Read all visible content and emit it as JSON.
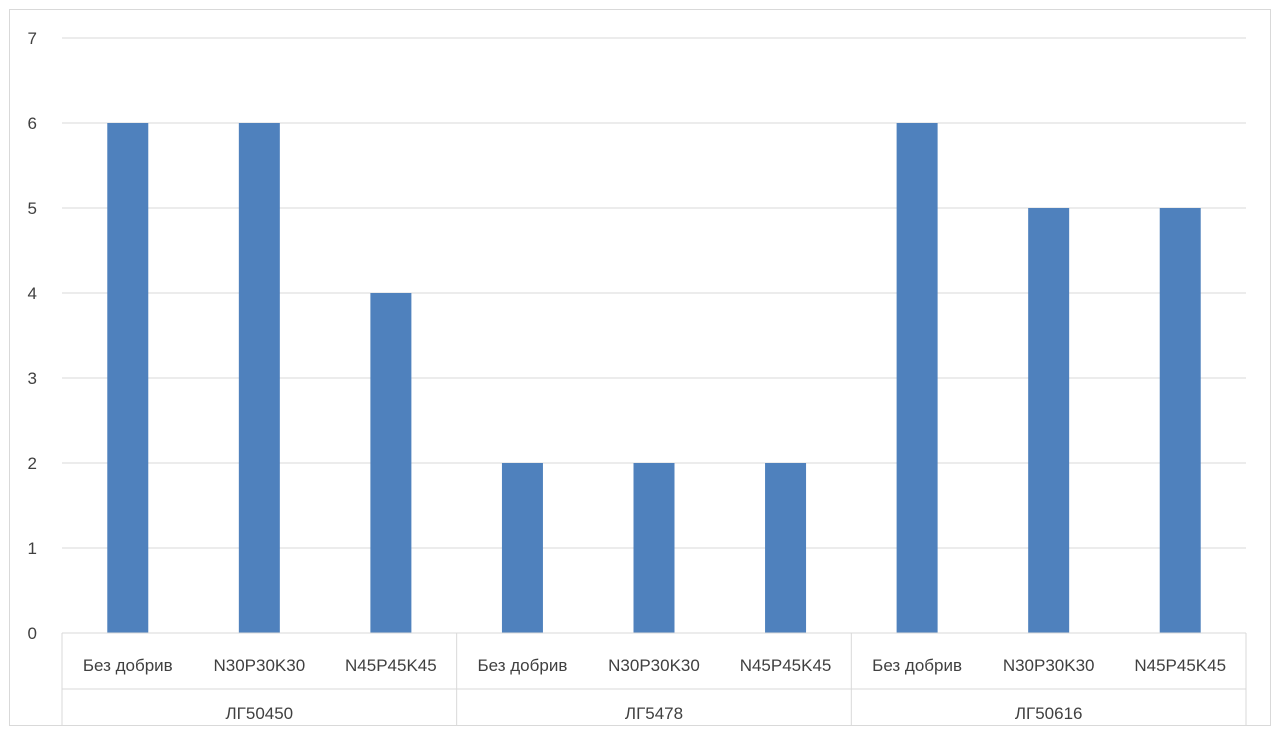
{
  "chart_data": {
    "type": "bar",
    "title": "",
    "xlabel": "",
    "ylabel": "",
    "ylim": [
      0,
      7
    ],
    "yticks": [
      0,
      1,
      2,
      3,
      4,
      5,
      6,
      7
    ],
    "grid": true,
    "legend": "none",
    "bar_color": "#4F81BD",
    "groups": [
      {
        "label": "ЛГ50450",
        "categories": [
          "Без добрив",
          "N30P30K30",
          "N45P45K45"
        ],
        "values": [
          6,
          6,
          4
        ]
      },
      {
        "label": "ЛГ5478",
        "categories": [
          "Без добрив",
          "N30P30K30",
          "N45P45K45"
        ],
        "values": [
          2,
          2,
          2
        ]
      },
      {
        "label": "ЛГ50616",
        "categories": [
          "Без добрив",
          "N30P30K30",
          "N45P45K45"
        ],
        "values": [
          6,
          5,
          5
        ]
      }
    ]
  }
}
